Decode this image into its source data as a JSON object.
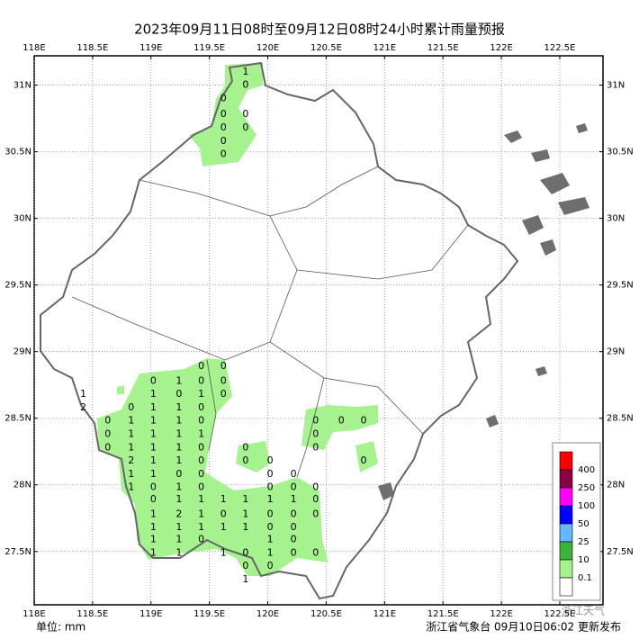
{
  "chart_data": {
    "type": "map",
    "title": "2023年09月11日08时至09月12日08时24小时累计雨量预报",
    "xlim": [
      118,
      122.87
    ],
    "ylim": [
      27.1,
      31.22
    ],
    "xticks": [
      {
        "value": 118,
        "label": "118E"
      },
      {
        "value": 118.5,
        "label": "118.5E"
      },
      {
        "value": 119,
        "label": "119E"
      },
      {
        "value": 119.5,
        "label": "119.5E"
      },
      {
        "value": 120,
        "label": "120E"
      },
      {
        "value": 120.5,
        "label": "120.5E"
      },
      {
        "value": 121,
        "label": "121E"
      },
      {
        "value": 121.5,
        "label": "121.5E"
      },
      {
        "value": 122,
        "label": "122E"
      },
      {
        "value": 122.5,
        "label": "122.5E"
      }
    ],
    "yticks": [
      {
        "value": 31,
        "label": "31N"
      },
      {
        "value": 30.5,
        "label": "30.5N"
      },
      {
        "value": 30,
        "label": "30N"
      },
      {
        "value": 29.5,
        "label": "29.5N"
      },
      {
        "value": 29,
        "label": "29N"
      },
      {
        "value": 28.5,
        "label": "28.5N"
      },
      {
        "value": 28,
        "label": "28N"
      },
      {
        "value": 27.5,
        "label": "27.5N"
      }
    ],
    "grid": true,
    "stations": [
      {
        "lat": 31.1,
        "lon": [
          119.81
        ],
        "values": [
          1
        ]
      },
      {
        "lat": 31.0,
        "lon": [
          119.81
        ],
        "values": [
          0
        ]
      },
      {
        "lat": 30.9,
        "lon": [
          119.62
        ],
        "values": [
          0
        ]
      },
      {
        "lat": 30.78,
        "lon": [
          119.62,
          119.81
        ],
        "values": [
          0,
          0
        ]
      },
      {
        "lat": 30.68,
        "lon": [
          119.62,
          119.81
        ],
        "values": [
          0,
          0
        ]
      },
      {
        "lat": 30.58,
        "lon": [
          119.62
        ],
        "values": [
          0
        ]
      },
      {
        "lat": 30.48,
        "lon": [
          119.62
        ],
        "values": [
          0
        ]
      },
      {
        "lat": 28.89,
        "lon": [
          119.43,
          119.62
        ],
        "values": [
          0,
          0
        ]
      },
      {
        "lat": 28.78,
        "lon": [
          119.02,
          119.24,
          119.43,
          119.62
        ],
        "values": [
          0,
          1,
          0,
          0
        ]
      },
      {
        "lat": 28.68,
        "lon": [
          118.42,
          119.02,
          119.24,
          119.43,
          119.62
        ],
        "values": [
          1,
          1,
          0,
          1,
          0
        ]
      },
      {
        "lat": 28.58,
        "lon": [
          118.42,
          118.83,
          119.02,
          119.24,
          119.43
        ],
        "values": [
          2,
          0,
          1,
          1,
          0
        ]
      },
      {
        "lat": 28.48,
        "lon": [
          118.63,
          118.83,
          119.02,
          119.24,
          119.43,
          120.41,
          120.63,
          120.82
        ],
        "values": [
          0,
          1,
          1,
          1,
          0,
          0,
          0,
          0
        ]
      },
      {
        "lat": 28.38,
        "lon": [
          118.63,
          118.83,
          119.02,
          119.24,
          119.43,
          120.41
        ],
        "values": [
          0,
          1,
          1,
          1,
          1,
          0
        ]
      },
      {
        "lat": 28.28,
        "lon": [
          118.63,
          118.83,
          119.02,
          119.24,
          119.43,
          119.81,
          120.41
        ],
        "values": [
          0,
          1,
          1,
          1,
          0,
          0,
          0
        ]
      },
      {
        "lat": 28.18,
        "lon": [
          118.83,
          119.02,
          119.24,
          119.43,
          119.81,
          120.02,
          120.82
        ],
        "values": [
          2,
          1,
          1,
          0,
          0,
          0,
          0
        ]
      },
      {
        "lat": 28.08,
        "lon": [
          118.83,
          119.02,
          119.24,
          119.43,
          120.02,
          120.22
        ],
        "values": [
          1,
          1,
          0,
          0,
          0,
          0
        ]
      },
      {
        "lat": 27.98,
        "lon": [
          118.83,
          119.02,
          119.24,
          119.43,
          120.02,
          120.22,
          120.41
        ],
        "values": [
          1,
          0,
          1,
          0,
          0,
          0,
          0
        ]
      },
      {
        "lat": 27.89,
        "lon": [
          119.02,
          119.24,
          119.43,
          119.62,
          119.81,
          120.02,
          120.22,
          120.41
        ],
        "values": [
          0,
          1,
          1,
          1,
          1,
          1,
          1,
          0
        ]
      },
      {
        "lat": 27.78,
        "lon": [
          119.02,
          119.24,
          119.43,
          119.62,
          119.81,
          120.02,
          120.22,
          120.41
        ],
        "values": [
          1,
          2,
          1,
          0,
          1,
          0,
          0,
          0
        ]
      },
      {
        "lat": 27.68,
        "lon": [
          119.02,
          119.24,
          119.43,
          119.62,
          119.81,
          120.02,
          120.22
        ],
        "values": [
          1,
          1,
          1,
          1,
          1,
          0,
          0
        ]
      },
      {
        "lat": 27.59,
        "lon": [
          119.02,
          119.24,
          119.43,
          120.02,
          120.22
        ],
        "values": [
          1,
          1,
          0,
          1,
          0
        ]
      },
      {
        "lat": 27.49,
        "lon": [
          119.02,
          119.24,
          119.62,
          119.81,
          120.02,
          120.22,
          120.41
        ],
        "values": [
          1,
          1,
          1,
          0,
          1,
          0,
          0
        ]
      },
      {
        "lat": 27.39,
        "lon": [
          119.81,
          120.02
        ],
        "values": [
          0,
          0
        ]
      },
      {
        "lat": 27.29,
        "lon": [
          119.81
        ],
        "values": [
          1
        ]
      }
    ],
    "legend": {
      "levels": [
        400,
        250,
        100,
        50,
        25,
        10,
        0.1
      ],
      "colors": [
        "#ff0000",
        "#8b0045",
        "#ff00ff",
        "#0000ff",
        "#64b8ff",
        "#3cb43c",
        "#a6f28f",
        "#ffffff"
      ]
    },
    "unit": "单位: mm",
    "source": "浙江省气象台 09月10日06:02 更新发布",
    "watermark": "浙江天气"
  }
}
